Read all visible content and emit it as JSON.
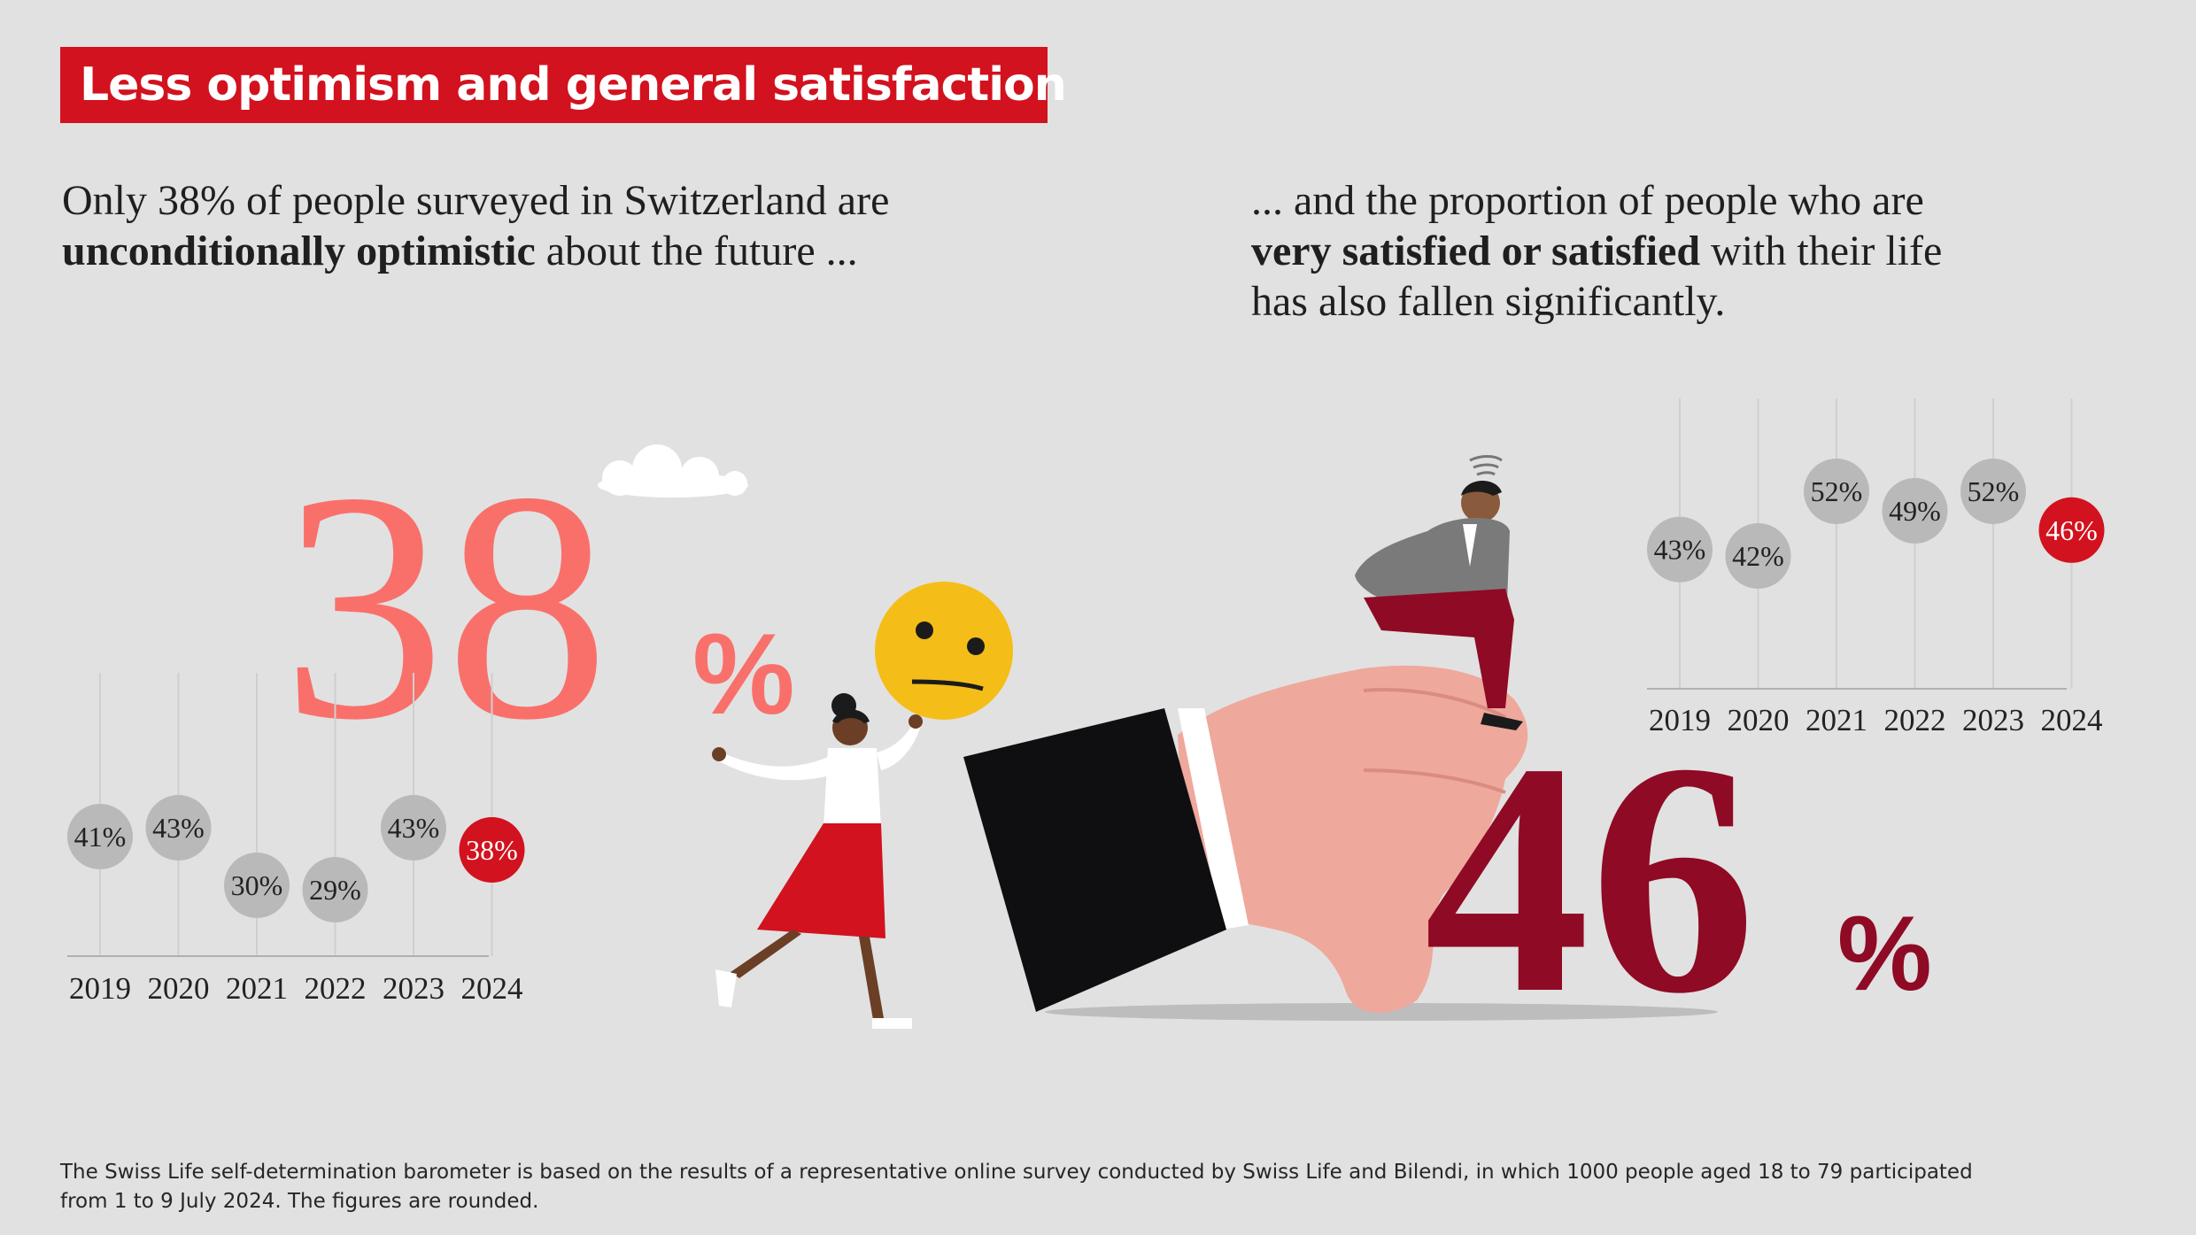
{
  "title": "Less optimism and general satisfaction",
  "intro_left": {
    "line1": "Only 38% of people surveyed in Switzerland are",
    "bold": "unconditionally optimistic",
    "rest": " about the future ..."
  },
  "intro_right": {
    "line1": "... and the proportion of people who are",
    "bold": "very satisfied or satisfied",
    "rest": " with their life",
    "line3": "has also fallen significantly."
  },
  "big_numbers": {
    "optimism_value": "38",
    "optimism_unit": "%",
    "satisfaction_value": "46",
    "satisfaction_unit": "%"
  },
  "colors": {
    "background": "#e1e1e1",
    "brand_red": "#d2121e",
    "salmon": "#f9706b",
    "dark_red": "#8f0a24",
    "bubble_grey": "#b9b9b9"
  },
  "chart_data": [
    {
      "type": "scatter",
      "categories": [
        "2019",
        "2020",
        "2021",
        "2022",
        "2023",
        "2024"
      ],
      "values": [
        41,
        43,
        30,
        29,
        43,
        38
      ],
      "labels": [
        "41%",
        "43%",
        "30%",
        "29%",
        "43%",
        "38%"
      ],
      "highlight_last": true
    },
    {
      "type": "scatter",
      "categories": [
        "2019",
        "2020",
        "2021",
        "2022",
        "2023",
        "2024"
      ],
      "values": [
        43,
        42,
        52,
        49,
        52,
        46
      ],
      "labels": [
        "43%",
        "42%",
        "52%",
        "49%",
        "52%",
        "46%"
      ],
      "highlight_last": true
    }
  ],
  "footnote": {
    "line1": "The Swiss Life self-determination barometer is based on the results of a representative online survey conducted by Swiss Life and Bilendi, in which 1000 people aged 18 to 79 participated",
    "line2": "from 1 to 9 July 2024. The figures are rounded."
  }
}
